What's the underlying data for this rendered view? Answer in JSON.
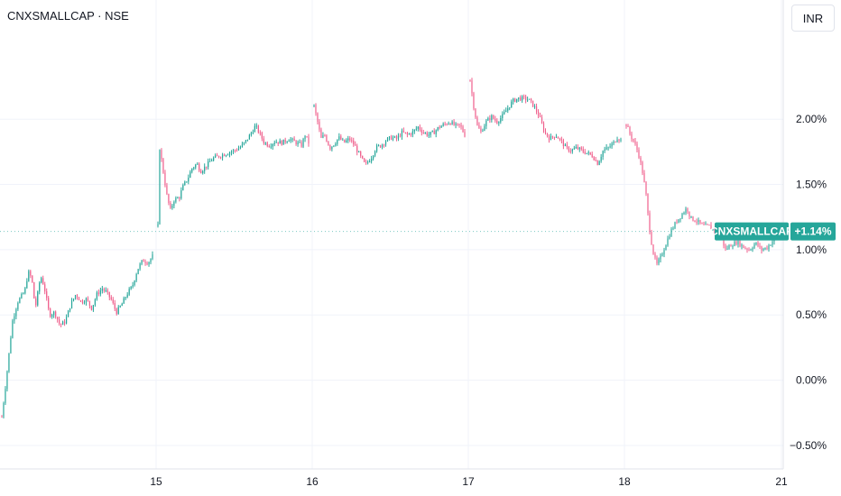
{
  "header": {
    "symbol_title": "CNXSMALLCAP · NSE",
    "currency_button": "INR"
  },
  "colors": {
    "up": "#26a69a",
    "down": "#ef5f8c",
    "label_bg": "#26a69a",
    "grid": "#f0f3fa",
    "axis_text": "#131722"
  },
  "chart_data": {
    "type": "candlestick",
    "title": "CNXSMALLCAP · NSE",
    "x_tick_labels": [
      "15",
      "16",
      "17",
      "18",
      "21"
    ],
    "y_tick_labels": [
      "2.00%",
      "1.50%",
      "1.00%",
      "0.50%",
      "0.00%",
      "−0.50%"
    ],
    "y_tick_values": [
      2.0,
      1.5,
      1.0,
      0.5,
      0.0,
      -0.5
    ],
    "ylim": [
      -0.68,
      2.72
    ],
    "grid": true,
    "sessions": [
      {
        "day": "14",
        "path": [
          [
            0,
            -0.28
          ],
          [
            5,
            0.0
          ],
          [
            12,
            0.45
          ],
          [
            18,
            0.6
          ],
          [
            26,
            0.68
          ],
          [
            30,
            0.83
          ],
          [
            34,
            0.78
          ],
          [
            38,
            0.55
          ],
          [
            44,
            0.8
          ],
          [
            48,
            0.72
          ],
          [
            54,
            0.5
          ],
          [
            60,
            0.52
          ],
          [
            66,
            0.42
          ],
          [
            72,
            0.45
          ],
          [
            78,
            0.58
          ],
          [
            84,
            0.66
          ],
          [
            90,
            0.6
          ],
          [
            96,
            0.62
          ],
          [
            102,
            0.55
          ],
          [
            108,
            0.66
          ],
          [
            114,
            0.7
          ],
          [
            118,
            0.68
          ],
          [
            124,
            0.62
          ],
          [
            130,
            0.52
          ],
          [
            136,
            0.58
          ],
          [
            142,
            0.66
          ],
          [
            148,
            0.72
          ],
          [
            154,
            0.85
          ],
          [
            160,
            0.92
          ],
          [
            166,
            0.9
          ],
          [
            171,
            0.95
          ]
        ]
      },
      {
        "day": "15",
        "path": [
          [
            0,
            1.18
          ],
          [
            2,
            1.78
          ],
          [
            6,
            1.6
          ],
          [
            10,
            1.42
          ],
          [
            14,
            1.3
          ],
          [
            18,
            1.38
          ],
          [
            24,
            1.4
          ],
          [
            28,
            1.48
          ],
          [
            34,
            1.55
          ],
          [
            38,
            1.62
          ],
          [
            44,
            1.66
          ],
          [
            48,
            1.6
          ],
          [
            54,
            1.64
          ],
          [
            62,
            1.7
          ],
          [
            70,
            1.72
          ],
          [
            78,
            1.74
          ],
          [
            86,
            1.76
          ],
          [
            92,
            1.78
          ],
          [
            98,
            1.82
          ],
          [
            104,
            1.88
          ],
          [
            110,
            1.95
          ],
          [
            114,
            1.9
          ],
          [
            120,
            1.82
          ],
          [
            126,
            1.8
          ],
          [
            132,
            1.83
          ],
          [
            140,
            1.82
          ],
          [
            148,
            1.85
          ],
          [
            156,
            1.82
          ],
          [
            162,
            1.8
          ],
          [
            166,
            1.88
          ],
          [
            170,
            1.82
          ]
        ]
      },
      {
        "day": "16",
        "path": [
          [
            0,
            2.1
          ],
          [
            4,
            1.98
          ],
          [
            8,
            1.85
          ],
          [
            12,
            1.88
          ],
          [
            18,
            1.78
          ],
          [
            24,
            1.82
          ],
          [
            28,
            1.86
          ],
          [
            34,
            1.82
          ],
          [
            40,
            1.85
          ],
          [
            46,
            1.8
          ],
          [
            52,
            1.72
          ],
          [
            58,
            1.65
          ],
          [
            62,
            1.68
          ],
          [
            66,
            1.72
          ],
          [
            70,
            1.78
          ],
          [
            76,
            1.8
          ],
          [
            82,
            1.84
          ],
          [
            88,
            1.86
          ],
          [
            94,
            1.85
          ],
          [
            100,
            1.9
          ],
          [
            106,
            1.88
          ],
          [
            112,
            1.9
          ],
          [
            118,
            1.94
          ],
          [
            124,
            1.9
          ],
          [
            130,
            1.88
          ],
          [
            136,
            1.9
          ],
          [
            142,
            1.94
          ],
          [
            148,
            1.96
          ],
          [
            154,
            1.98
          ],
          [
            160,
            1.95
          ],
          [
            166,
            1.95
          ],
          [
            171,
            1.88
          ]
        ]
      },
      {
        "day": "17",
        "path": [
          [
            0,
            2.3
          ],
          [
            4,
            2.1
          ],
          [
            8,
            1.95
          ],
          [
            12,
            1.9
          ],
          [
            18,
            1.98
          ],
          [
            24,
            2.02
          ],
          [
            30,
            1.98
          ],
          [
            36,
            2.02
          ],
          [
            42,
            2.08
          ],
          [
            48,
            2.14
          ],
          [
            54,
            2.16
          ],
          [
            60,
            2.16
          ],
          [
            66,
            2.15
          ],
          [
            72,
            2.1
          ],
          [
            78,
            2.02
          ],
          [
            84,
            1.9
          ],
          [
            90,
            1.85
          ],
          [
            96,
            1.88
          ],
          [
            102,
            1.84
          ],
          [
            108,
            1.78
          ],
          [
            114,
            1.76
          ],
          [
            120,
            1.78
          ],
          [
            126,
            1.76
          ],
          [
            132,
            1.74
          ],
          [
            138,
            1.72
          ],
          [
            144,
            1.66
          ],
          [
            150,
            1.76
          ],
          [
            156,
            1.78
          ],
          [
            162,
            1.82
          ],
          [
            166,
            1.86
          ],
          [
            170,
            1.84
          ]
        ]
      },
      {
        "day": "18",
        "path": [
          [
            0,
            1.96
          ],
          [
            4,
            1.88
          ],
          [
            8,
            1.82
          ],
          [
            12,
            1.74
          ],
          [
            16,
            1.6
          ],
          [
            20,
            1.4
          ],
          [
            22,
            1.22
          ],
          [
            26,
            1.0
          ],
          [
            30,
            0.88
          ],
          [
            34,
            0.94
          ],
          [
            38,
            1.02
          ],
          [
            44,
            1.14
          ],
          [
            50,
            1.22
          ],
          [
            56,
            1.28
          ],
          [
            60,
            1.32
          ],
          [
            64,
            1.24
          ],
          [
            70,
            1.22
          ],
          [
            76,
            1.18
          ],
          [
            82,
            1.18
          ],
          [
            88,
            1.14
          ],
          [
            94,
            1.1
          ],
          [
            98,
            1.0
          ],
          [
            104,
            1.04
          ],
          [
            110,
            1.06
          ],
          [
            116,
            1.02
          ],
          [
            122,
            1.0
          ],
          [
            128,
            1.05
          ],
          [
            134,
            1.0
          ],
          [
            140,
            1.02
          ],
          [
            146,
            1.08
          ],
          [
            150,
            1.14
          ]
        ]
      }
    ],
    "last_value_label": {
      "name": "CNXSMALLCAP",
      "value": "+1.14%",
      "y": 1.14
    }
  }
}
